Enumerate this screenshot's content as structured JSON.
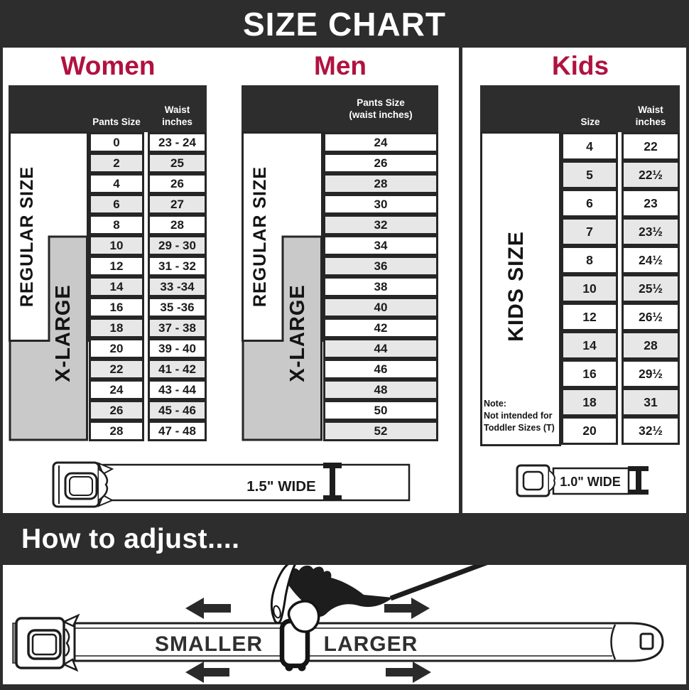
{
  "banner": {
    "title": "SIZE CHART"
  },
  "sections": {
    "women": {
      "heading": "Women",
      "col_headers": {
        "pants": "Pants Size",
        "waist_line1": "Waist",
        "waist_line2": "inches"
      },
      "side_labels": {
        "regular": "REGULAR SIZE",
        "xlarge": "X-LARGE"
      },
      "rows": [
        {
          "size": "0",
          "waist": "23 - 24"
        },
        {
          "size": "2",
          "waist": "25"
        },
        {
          "size": "4",
          "waist": "26"
        },
        {
          "size": "6",
          "waist": "27"
        },
        {
          "size": "8",
          "waist": "28"
        },
        {
          "size": "10",
          "waist": "29 - 30"
        },
        {
          "size": "12",
          "waist": "31 - 32"
        },
        {
          "size": "14",
          "waist": "33 -34"
        },
        {
          "size": "16",
          "waist": "35 -36"
        },
        {
          "size": "18",
          "waist": "37 - 38"
        },
        {
          "size": "20",
          "waist": "39 - 40"
        },
        {
          "size": "22",
          "waist": "41 - 42"
        },
        {
          "size": "24",
          "waist": "43 - 44"
        },
        {
          "size": "26",
          "waist": "45 - 46"
        },
        {
          "size": "28",
          "waist": "47 - 48"
        }
      ]
    },
    "men": {
      "heading": "Men",
      "col_header_line1": "Pants Size",
      "col_header_line2": "(waist inches)",
      "side_labels": {
        "regular": "REGULAR SIZE",
        "xlarge": "X-LARGE"
      },
      "rows": [
        "24",
        "26",
        "28",
        "30",
        "32",
        "34",
        "36",
        "38",
        "40",
        "42",
        "44",
        "46",
        "48",
        "50",
        "52"
      ]
    },
    "kids": {
      "heading": "Kids",
      "col_headers": {
        "size": "Size",
        "waist_line1": "Waist",
        "waist_line2": "inches"
      },
      "side_label": "KIDS SIZE",
      "note": {
        "line1": "Note:",
        "line2": "Not intended for",
        "line3": "Toddler Sizes (T)"
      },
      "rows": [
        {
          "size": "4",
          "waist": "22"
        },
        {
          "size": "5",
          "waist": "22½"
        },
        {
          "size": "6",
          "waist": "23"
        },
        {
          "size": "7",
          "waist": "23½"
        },
        {
          "size": "8",
          "waist": "24½"
        },
        {
          "size": "10",
          "waist": "25½"
        },
        {
          "size": "12",
          "waist": "26½"
        },
        {
          "size": "14",
          "waist": "28"
        },
        {
          "size": "16",
          "waist": "29½"
        },
        {
          "size": "18",
          "waist": "31"
        },
        {
          "size": "20",
          "waist": "32½"
        }
      ]
    }
  },
  "belts": {
    "adult_width": "1.5\" WIDE",
    "kids_width": "1.0\" WIDE"
  },
  "adjust": {
    "heading": "How to adjust....",
    "smaller": "SMALLER",
    "larger": "LARGER"
  },
  "colors": {
    "accent": "#b01240",
    "dark": "#2d2d2d",
    "xlarge_gray": "#c9c9c9",
    "row_alt": "#e7e7e7",
    "table_border": "#262626"
  }
}
